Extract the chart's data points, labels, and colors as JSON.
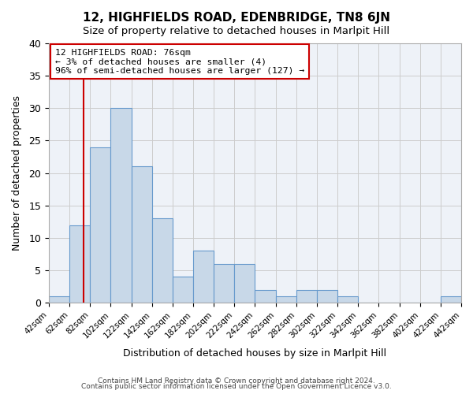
{
  "title": "12, HIGHFIELDS ROAD, EDENBRIDGE, TN8 6JN",
  "subtitle": "Size of property relative to detached houses in Marlpit Hill",
  "xlabel": "Distribution of detached houses by size in Marlpit Hill",
  "ylabel": "Number of detached properties",
  "bin_edges": [
    42,
    62,
    82,
    102,
    122,
    142,
    162,
    182,
    202,
    222,
    242,
    262,
    282,
    302,
    322,
    342,
    362,
    382,
    402,
    422,
    442
  ],
  "counts": [
    1,
    12,
    24,
    30,
    21,
    13,
    4,
    8,
    6,
    6,
    2,
    1,
    2,
    2,
    1,
    0,
    0,
    0,
    0,
    1
  ],
  "bar_facecolor": "#c8d8e8",
  "bar_edgecolor": "#6699cc",
  "bar_linewidth": 0.8,
  "property_size": 76,
  "annotation_text": "12 HIGHFIELDS ROAD: 76sqm\n← 3% of detached houses are smaller (4)\n96% of semi-detached houses are larger (127) →",
  "annotation_box_edgecolor": "#cc0000",
  "annotation_line_color": "#cc0000",
  "ylim": [
    0,
    40
  ],
  "yticks": [
    0,
    5,
    10,
    15,
    20,
    25,
    30,
    35,
    40
  ],
  "grid_color": "#cccccc",
  "background_color": "#eef2f8",
  "footer_line1": "Contains HM Land Registry data © Crown copyright and database right 2024.",
  "footer_line2": "Contains public sector information licensed under the Open Government Licence v3.0."
}
